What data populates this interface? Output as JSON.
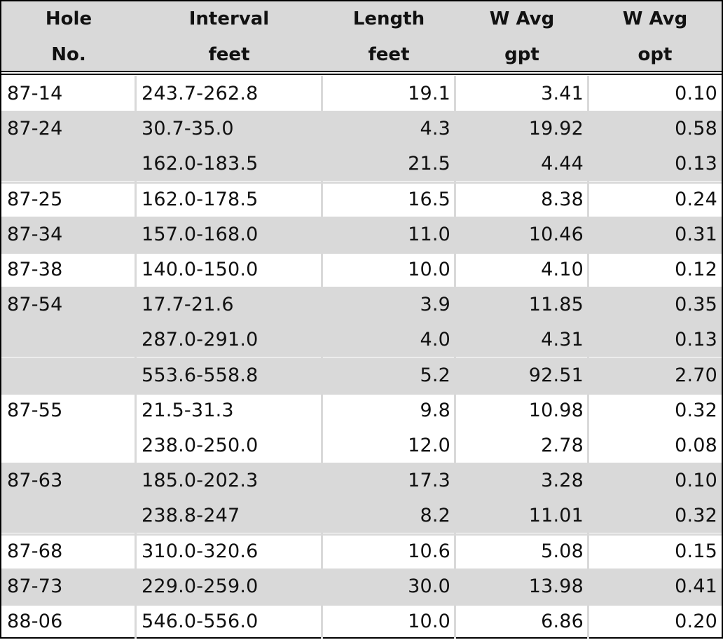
{
  "header": {
    "col1": [
      "Hole",
      "No."
    ],
    "col2": [
      "Interval",
      "feet"
    ],
    "col3": [
      "Length",
      "feet"
    ],
    "col4": [
      "W Avg",
      "gpt"
    ],
    "col5": [
      "W Avg",
      "opt"
    ]
  },
  "rows": [
    {
      "hole": "87-14",
      "interval": "243.7-262.8",
      "length": "19.1",
      "gpt": "3.41",
      "opt": "0.10"
    },
    {
      "hole": "87-24",
      "interval": "30.7-35.0",
      "length": "4.3",
      "gpt": "19.92",
      "opt": "0.58"
    },
    {
      "hole": "",
      "interval": "162.0-183.5",
      "length": "21.5",
      "gpt": "4.44",
      "opt": "0.13"
    },
    {
      "hole": "87-25",
      "interval": "162.0-178.5",
      "length": "16.5",
      "gpt": "8.38",
      "opt": "0.24"
    },
    {
      "hole": "87-34",
      "interval": "157.0-168.0",
      "length": "11.0",
      "gpt": "10.46",
      "opt": "0.31"
    },
    {
      "hole": "87-38",
      "interval": "140.0-150.0",
      "length": "10.0",
      "gpt": "4.10",
      "opt": "0.12"
    },
    {
      "hole": "87-54",
      "interval": "17.7-21.6",
      "length": "3.9",
      "gpt": "11.85",
      "opt": "0.35"
    },
    {
      "hole": "",
      "interval": "287.0-291.0",
      "length": "4.0",
      "gpt": "4.31",
      "opt": "0.13"
    },
    {
      "hole": "",
      "interval": "553.6-558.8",
      "length": "5.2",
      "gpt": "92.51",
      "opt": "2.70"
    },
    {
      "hole": "87-55",
      "interval": "21.5-31.3",
      "length": "9.8",
      "gpt": "10.98",
      "opt": "0.32"
    },
    {
      "hole": "",
      "interval": "238.0-250.0",
      "length": "12.0",
      "gpt": "2.78",
      "opt": "0.08"
    },
    {
      "hole": "87-63",
      "interval": "185.0-202.3",
      "length": "17.3",
      "gpt": "3.28",
      "opt": "0.10"
    },
    {
      "hole": "",
      "interval": "238.8-247",
      "length": "8.2",
      "gpt": "11.01",
      "opt": "0.32"
    },
    {
      "hole": "87-68",
      "interval": "310.0-320.6",
      "length": "10.6",
      "gpt": "5.08",
      "opt": "0.15"
    },
    {
      "hole": "87-73",
      "interval": "229.0-259.0",
      "length": "30.0",
      "gpt": "13.98",
      "opt": "0.41"
    },
    {
      "hole": "88-06",
      "interval": "546.0-556.0",
      "length": "10.0",
      "gpt": "6.86",
      "opt": "0.20"
    }
  ],
  "colors": {
    "shade": "#d9d9d9",
    "border": "#000000",
    "text": "#111111"
  }
}
